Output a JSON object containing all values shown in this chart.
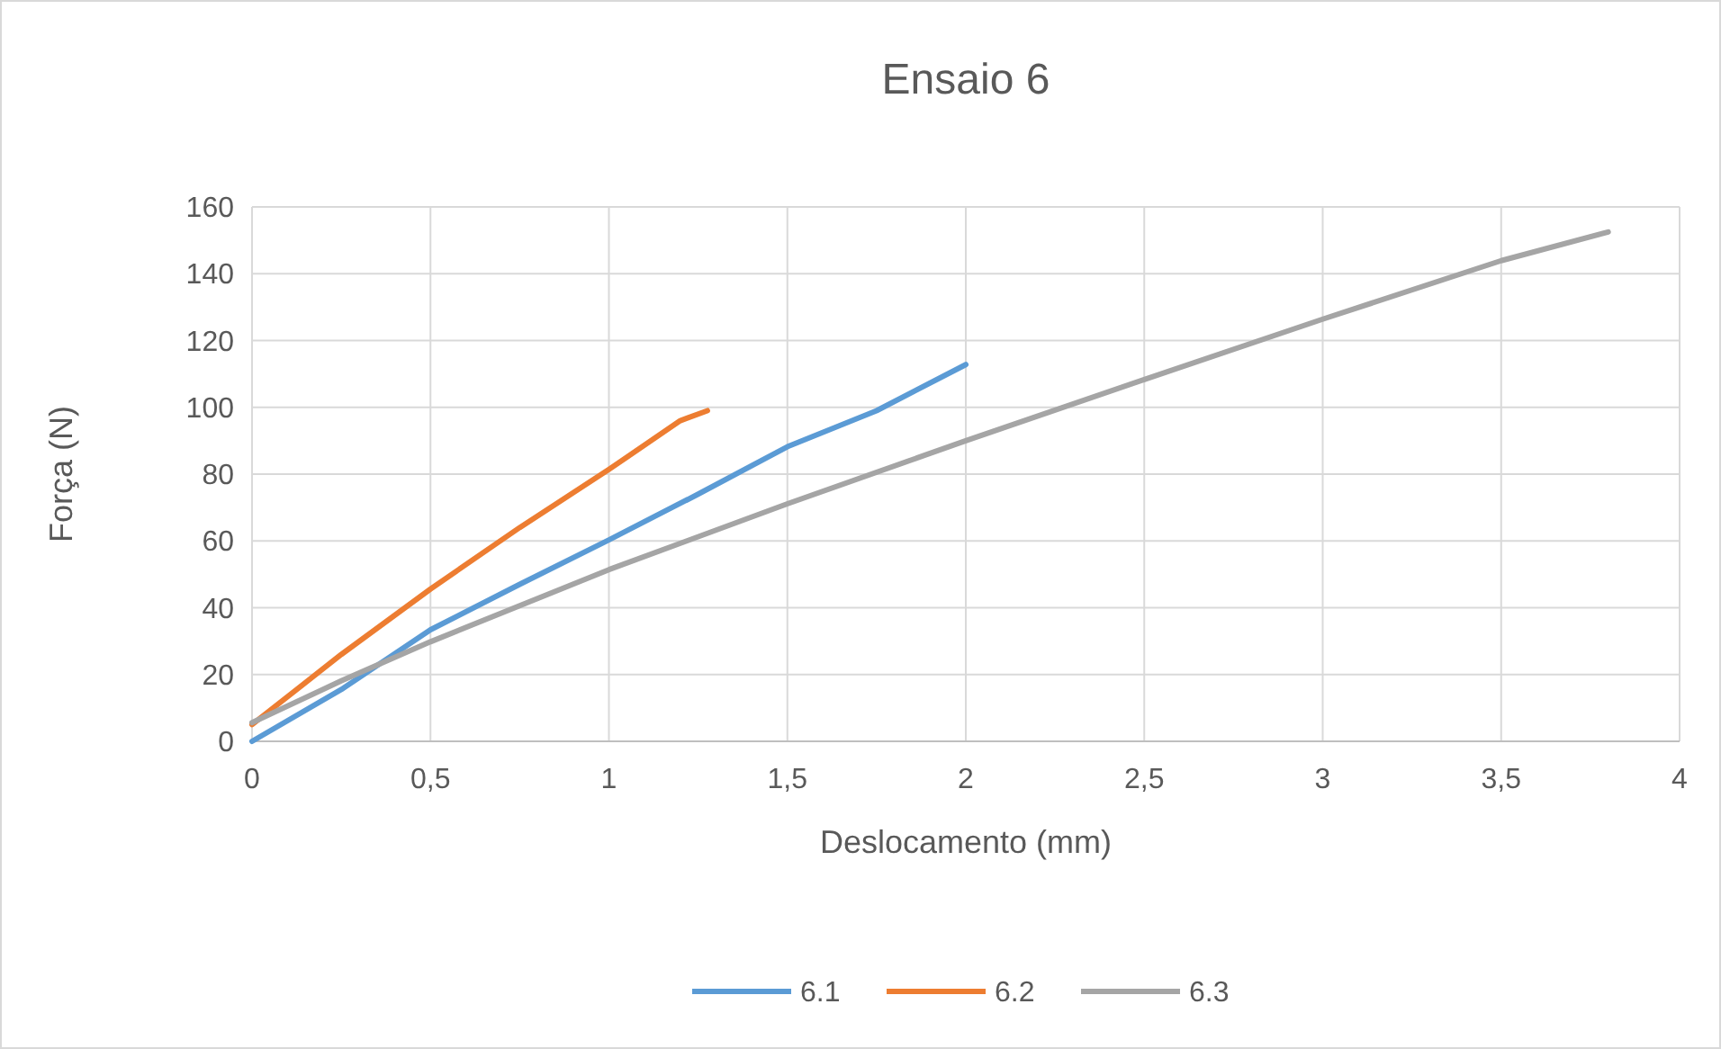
{
  "chart_data": {
    "type": "line",
    "title": "Ensaio 6",
    "xlabel": "Deslocamento (mm)",
    "ylabel": "Força (N)",
    "xlim": [
      0,
      4
    ],
    "xticks": [
      0,
      {
        "value": 0.5,
        "label": "0,5"
      },
      1,
      {
        "value": 1.5,
        "label": "1,5"
      },
      2,
      {
        "value": 2.5,
        "label": "2,5"
      },
      3,
      {
        "value": 3.5,
        "label": "3,5"
      },
      4
    ],
    "ylim": [
      0,
      160
    ],
    "yticks": [
      0,
      20,
      40,
      60,
      80,
      100,
      120,
      140,
      160
    ],
    "grid": true,
    "legend": "bottom",
    "marker": "none",
    "line_style": "solid",
    "series": [
      {
        "name": "6.1",
        "color": "#5b9bd5",
        "x": [
          0,
          0.25,
          0.5,
          0.75,
          1,
          1.25,
          1.5,
          1.75,
          2
        ],
        "values": [
          0,
          15.5,
          33.4,
          47,
          60.3,
          74,
          88.2,
          99,
          112.8
        ]
      },
      {
        "name": "6.2",
        "color": "#ed7d31",
        "x": [
          0,
          0.25,
          0.5,
          0.75,
          1,
          1.2,
          1.276
        ],
        "values": [
          5,
          26,
          45.6,
          64,
          81.4,
          96,
          99
        ]
      },
      {
        "name": "6.3",
        "color": "#a5a5a5",
        "x": [
          0,
          0.25,
          0.5,
          1,
          1.5,
          2,
          2.5,
          3,
          3.5,
          3.8
        ],
        "values": [
          5.6,
          18.1,
          29.8,
          51.4,
          71.1,
          90,
          108.3,
          126.4,
          143.9,
          152.5
        ]
      }
    ]
  }
}
